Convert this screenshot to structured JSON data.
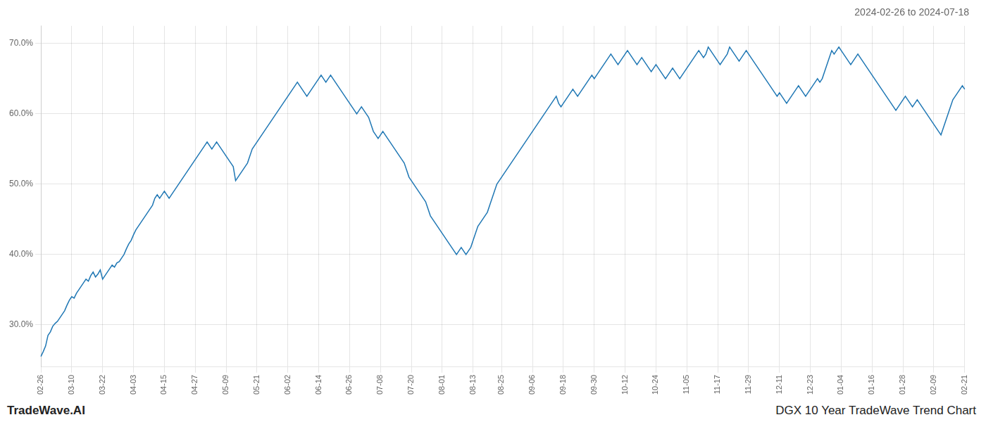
{
  "chart_data": {
    "type": "line",
    "title": "2024-02-26 to 2024-07-18",
    "annotations": [
      "TradeWave.AI",
      "DGX 10 Year TradeWave Trend Chart"
    ],
    "color": "#1f77b4",
    "grid": true,
    "ylim": [
      24.0,
      72.5
    ],
    "yticks": [
      {
        "value": 30.0,
        "label": "30.0%"
      },
      {
        "value": 40.0,
        "label": "40.0%"
      },
      {
        "value": 50.0,
        "label": "50.0%"
      },
      {
        "value": 60.0,
        "label": "60.0%"
      },
      {
        "value": 70.0,
        "label": "70.0%"
      }
    ],
    "categories": [
      "02-26",
      null,
      null,
      null,
      null,
      null,
      null,
      null,
      null,
      null,
      null,
      null,
      null,
      "03-10",
      null,
      null,
      null,
      null,
      null,
      null,
      null,
      null,
      null,
      null,
      null,
      null,
      "03-22",
      null,
      null,
      null,
      null,
      null,
      null,
      null,
      null,
      null,
      null,
      null,
      null,
      "04-03",
      null,
      null,
      null,
      null,
      null,
      null,
      null,
      null,
      null,
      null,
      null,
      null,
      "04-15",
      null,
      null,
      null,
      null,
      null,
      null,
      null,
      null,
      null,
      null,
      null,
      null,
      "04-27",
      null,
      null,
      null,
      null,
      null,
      null,
      null,
      null,
      null,
      null,
      null,
      null,
      "05-09",
      null,
      null,
      null,
      null,
      null,
      null,
      null,
      null,
      null,
      null,
      null,
      null,
      "05-21",
      null,
      null,
      null,
      null,
      null,
      null,
      null,
      null,
      null,
      null,
      null,
      null,
      "06-02",
      null,
      null,
      null,
      null,
      null,
      null,
      null,
      null,
      null,
      null,
      null,
      null,
      "06-14",
      null,
      null,
      null,
      null,
      null,
      null,
      null,
      null,
      null,
      null,
      null,
      null,
      "06-26",
      null,
      null,
      null,
      null,
      null,
      null,
      null,
      null,
      null,
      null,
      null,
      null,
      "07-08",
      null,
      null,
      null,
      null,
      null,
      null,
      null,
      null,
      null,
      null,
      null,
      null,
      "07-20",
      null,
      null,
      null,
      null,
      null,
      null,
      null,
      null,
      null,
      null,
      null,
      null,
      "08-01",
      null,
      null,
      null,
      null,
      null,
      null,
      null,
      null,
      null,
      null,
      null,
      null,
      "08-13",
      null,
      null,
      null,
      null,
      null,
      null,
      null,
      null,
      null,
      null,
      null,
      "08-25",
      null,
      null,
      null,
      null,
      null,
      null,
      null,
      null,
      null,
      null,
      null,
      null,
      "09-06",
      null,
      null,
      null,
      null,
      null,
      null,
      null,
      null,
      null,
      null,
      null,
      null,
      "09-18",
      null,
      null,
      null,
      null,
      null,
      null,
      null,
      null,
      null,
      null,
      null,
      null,
      "09-30",
      null,
      null,
      null,
      null,
      null,
      null,
      null,
      null,
      null,
      null,
      null,
      null,
      "10-12",
      null,
      null,
      null,
      null,
      null,
      null,
      null,
      null,
      null,
      null,
      null,
      null,
      "10-24",
      null,
      null,
      null,
      null,
      null,
      null,
      null,
      null,
      null,
      null,
      null,
      null,
      "11-05",
      null,
      null,
      null,
      null,
      null,
      null,
      null,
      null,
      null,
      null,
      null,
      null,
      "11-17",
      null,
      null,
      null,
      null,
      null,
      null,
      null,
      null,
      null,
      null,
      null,
      null,
      "11-29",
      null,
      null,
      null,
      null,
      null,
      null,
      null,
      null,
      null,
      null,
      null,
      null,
      "12-11",
      null,
      null,
      null,
      null,
      null,
      null,
      null,
      null,
      null,
      null,
      null,
      null,
      "12-23",
      null,
      null,
      null,
      null,
      null,
      null,
      null,
      null,
      null,
      null,
      null,
      null,
      "01-04",
      null,
      null,
      null,
      null,
      null,
      null,
      null,
      null,
      null,
      null,
      null,
      null,
      "01-16",
      null,
      null,
      null,
      null,
      null,
      null,
      null,
      null,
      null,
      null,
      null,
      null,
      "01-28",
      null,
      null,
      null,
      null,
      null,
      null,
      null,
      null,
      null,
      null,
      null,
      null,
      "02-09",
      null,
      null,
      null,
      null,
      null,
      null,
      null,
      null,
      null,
      null,
      null,
      null,
      "02-21"
    ],
    "values": [
      25.5,
      26.2,
      27.0,
      28.5,
      29.0,
      29.8,
      30.2,
      30.5,
      31.0,
      31.5,
      32.0,
      32.8,
      33.5,
      34.0,
      33.8,
      34.5,
      35.0,
      35.5,
      36.0,
      36.5,
      36.2,
      37.0,
      37.5,
      36.8,
      37.2,
      37.8,
      36.5,
      37.0,
      37.5,
      38.0,
      38.5,
      38.2,
      38.8,
      39.0,
      39.5,
      40.0,
      40.8,
      41.5,
      42.0,
      42.8,
      43.5,
      44.0,
      44.5,
      45.0,
      45.5,
      46.0,
      46.5,
      47.0,
      48.0,
      48.5,
      48.0,
      48.5,
      49.0,
      48.5,
      48.0,
      48.5,
      49.0,
      49.5,
      50.0,
      50.5,
      51.0,
      51.5,
      52.0,
      52.5,
      53.0,
      53.5,
      54.0,
      54.5,
      55.0,
      55.5,
      56.0,
      55.5,
      55.0,
      55.5,
      56.0,
      55.5,
      55.0,
      54.5,
      54.0,
      53.5,
      53.0,
      52.5,
      50.5,
      51.0,
      51.5,
      52.0,
      52.5,
      53.0,
      54.0,
      55.0,
      55.5,
      56.0,
      56.5,
      57.0,
      57.5,
      58.0,
      58.5,
      59.0,
      59.5,
      60.0,
      60.5,
      61.0,
      61.5,
      62.0,
      62.5,
      63.0,
      63.5,
      64.0,
      64.5,
      64.0,
      63.5,
      63.0,
      62.5,
      63.0,
      63.5,
      64.0,
      64.5,
      65.0,
      65.5,
      65.0,
      64.5,
      65.0,
      65.5,
      65.0,
      64.5,
      64.0,
      63.5,
      63.0,
      62.5,
      62.0,
      61.5,
      61.0,
      60.5,
      60.0,
      60.5,
      61.0,
      60.5,
      60.0,
      59.5,
      58.5,
      57.5,
      57.0,
      56.5,
      57.0,
      57.5,
      57.0,
      56.5,
      56.0,
      55.5,
      55.0,
      54.5,
      54.0,
      53.5,
      53.0,
      52.0,
      51.0,
      50.5,
      50.0,
      49.5,
      49.0,
      48.5,
      48.0,
      47.5,
      46.5,
      45.5,
      45.0,
      44.5,
      44.0,
      43.5,
      43.0,
      42.5,
      42.0,
      41.5,
      41.0,
      40.5,
      40.0,
      40.5,
      41.0,
      40.5,
      40.0,
      40.5,
      41.0,
      42.0,
      43.0,
      44.0,
      44.5,
      45.0,
      45.5,
      46.0,
      47.0,
      48.0,
      49.0,
      50.0,
      50.5,
      51.0,
      51.5,
      52.0,
      52.5,
      53.0,
      53.5,
      54.0,
      54.5,
      55.0,
      55.5,
      56.0,
      56.5,
      57.0,
      57.5,
      58.0,
      58.5,
      59.0,
      59.5,
      60.0,
      60.5,
      61.0,
      61.5,
      62.0,
      62.5,
      61.5,
      61.0,
      61.5,
      62.0,
      62.5,
      63.0,
      63.5,
      63.0,
      62.5,
      63.0,
      63.5,
      64.0,
      64.5,
      65.0,
      65.5,
      65.0,
      65.5,
      66.0,
      66.5,
      67.0,
      67.5,
      68.0,
      68.5,
      68.0,
      67.5,
      67.0,
      67.5,
      68.0,
      68.5,
      69.0,
      68.5,
      68.0,
      67.5,
      67.0,
      67.5,
      68.0,
      67.5,
      67.0,
      66.5,
      66.0,
      66.5,
      67.0,
      66.5,
      66.0,
      65.5,
      65.0,
      65.5,
      66.0,
      66.5,
      66.0,
      65.5,
      65.0,
      65.5,
      66.0,
      66.5,
      67.0,
      67.5,
      68.0,
      68.5,
      69.0,
      68.5,
      68.0,
      68.5,
      69.5,
      69.0,
      68.5,
      68.0,
      67.5,
      67.0,
      67.5,
      68.0,
      68.5,
      69.5,
      69.0,
      68.5,
      68.0,
      67.5,
      68.0,
      68.5,
      69.0,
      68.5,
      68.0,
      67.5,
      67.0,
      66.5,
      66.0,
      65.5,
      65.0,
      64.5,
      64.0,
      63.5,
      63.0,
      62.5,
      63.0,
      62.5,
      62.0,
      61.5,
      62.0,
      62.5,
      63.0,
      63.5,
      64.0,
      63.5,
      63.0,
      62.5,
      63.0,
      63.5,
      64.0,
      64.5,
      65.0,
      64.5,
      65.0,
      66.0,
      67.0,
      68.0,
      69.0,
      68.5,
      69.0,
      69.5,
      69.0,
      68.5,
      68.0,
      67.5,
      67.0,
      67.5,
      68.0,
      68.5,
      68.0,
      67.5,
      67.0,
      66.5,
      66.0,
      65.5,
      65.0,
      64.5,
      64.0,
      63.5,
      63.0,
      62.5,
      62.0,
      61.5,
      61.0,
      60.5,
      61.0,
      61.5,
      62.0,
      62.5,
      62.0,
      61.5,
      61.0,
      61.5,
      62.0,
      61.5,
      61.0,
      60.5,
      60.0,
      59.5,
      59.0,
      58.5,
      58.0,
      57.5,
      57.0,
      58.0,
      59.0,
      60.0,
      61.0,
      62.0,
      62.5,
      63.0,
      63.5,
      64.0,
      63.5
    ]
  }
}
